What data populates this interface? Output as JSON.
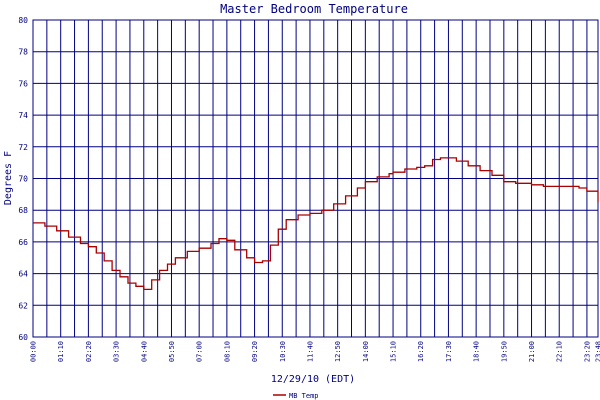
{
  "chart_data": {
    "type": "line",
    "title": "Master Bedroom Temperature",
    "xlabel": "12/29/10 (EDT)",
    "ylabel": "Degrees F",
    "ylim": [
      60,
      80
    ],
    "yticks": [
      "60",
      "62",
      "64",
      "66",
      "68",
      "70",
      "72",
      "74",
      "76",
      "78",
      "80"
    ],
    "xticks": [
      "00:00",
      "01:10",
      "02:20",
      "03:30",
      "04:40",
      "05:50",
      "07:00",
      "08:10",
      "09:20",
      "10:30",
      "11:40",
      "12:50",
      "14:00",
      "15:10",
      "16:20",
      "17:30",
      "18:40",
      "19:50",
      "21:00",
      "22:10",
      "23:20",
      "23:48"
    ],
    "grid": true,
    "legend_position": "bottom-left",
    "colors": {
      "line": "#aa0000",
      "grid": "#000080",
      "axes": "#000080",
      "background": "#ffffff"
    },
    "series": [
      {
        "name": "MB Temp",
        "x": [
          "00:00",
          "00:30",
          "01:00",
          "01:30",
          "02:00",
          "02:20",
          "02:40",
          "03:00",
          "03:20",
          "03:40",
          "04:00",
          "04:20",
          "04:40",
          "05:00",
          "05:20",
          "05:40",
          "06:00",
          "06:30",
          "07:00",
          "07:30",
          "07:50",
          "08:10",
          "08:30",
          "09:00",
          "09:20",
          "09:40",
          "10:00",
          "10:20",
          "10:40",
          "11:10",
          "11:40",
          "12:10",
          "12:40",
          "13:10",
          "13:40",
          "14:00",
          "14:30",
          "15:00",
          "15:10",
          "15:40",
          "16:10",
          "16:30",
          "16:50",
          "17:10",
          "17:30",
          "17:50",
          "18:20",
          "18:50",
          "19:20",
          "19:50",
          "20:20",
          "21:00",
          "21:30",
          "22:00",
          "22:30",
          "23:00",
          "23:20",
          "23:48"
        ],
        "values": [
          67.2,
          67.0,
          66.7,
          66.3,
          65.9,
          65.7,
          65.3,
          64.8,
          64.2,
          63.8,
          63.4,
          63.2,
          63.0,
          63.6,
          64.2,
          64.6,
          65.0,
          65.4,
          65.6,
          65.9,
          66.2,
          66.1,
          65.5,
          65.0,
          64.7,
          64.8,
          65.8,
          66.8,
          67.4,
          67.7,
          67.8,
          68.0,
          68.4,
          68.9,
          69.4,
          69.8,
          70.1,
          70.3,
          70.4,
          70.6,
          70.7,
          70.8,
          71.2,
          71.3,
          71.3,
          71.1,
          70.8,
          70.5,
          70.2,
          69.8,
          69.7,
          69.6,
          69.5,
          69.5,
          69.5,
          69.4,
          69.2,
          68.5
        ]
      }
    ]
  }
}
